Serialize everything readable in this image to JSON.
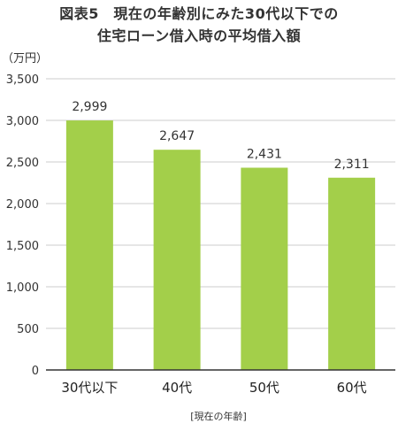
{
  "chart_data": {
    "type": "bar",
    "title_line1": "図表5　現在の年齢別にみた30代以下での",
    "title_line2": "住宅ローン借入時の平均借入額",
    "unit_label": "（万円）",
    "xlabel": "[現在の年齢]",
    "ylabel": "",
    "categories": [
      "30代以下",
      "40代",
      "50代",
      "60代"
    ],
    "values": [
      2999,
      2647,
      2431,
      2311
    ],
    "data_labels": [
      "2,999",
      "2,647",
      "2,431",
      "2,311"
    ],
    "y_ticks": [
      0,
      500,
      1000,
      1500,
      2000,
      2500,
      3000,
      3500
    ],
    "y_tick_labels": [
      "0",
      "500",
      "1,000",
      "1,500",
      "2,000",
      "2,500",
      "3,000",
      "3,500"
    ],
    "ylim": [
      0,
      3500
    ],
    "grid": true,
    "legend": "none",
    "bar_color": "#a3cf4a",
    "grid_color": "#cccccc",
    "axis_color": "#333333"
  }
}
